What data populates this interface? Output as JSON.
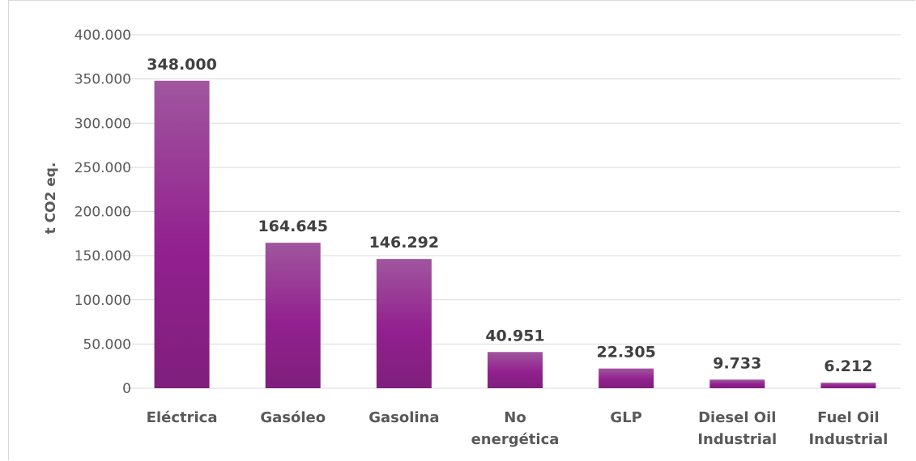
{
  "chart_data": {
    "type": "bar",
    "title": "",
    "xlabel": "",
    "ylabel": "t CO2 eq.",
    "ylim": [
      0,
      400000
    ],
    "yticks": [
      0,
      50000,
      100000,
      150000,
      200000,
      250000,
      300000,
      350000,
      400000
    ],
    "ytick_labels": [
      "0",
      "50.000",
      "100.000",
      "150.000",
      "200.000",
      "250.000",
      "300.000",
      "350.000",
      "400.000"
    ],
    "categories": [
      [
        "Eléctrica"
      ],
      [
        "Gasóleo"
      ],
      [
        "Gasolina"
      ],
      [
        "No",
        "energética"
      ],
      [
        "GLP"
      ],
      [
        "Diesel Oil",
        "Industrial"
      ],
      [
        "Fuel Oil",
        "Industrial"
      ]
    ],
    "values": [
      348000,
      164645,
      146292,
      40951,
      22305,
      9733,
      6212
    ],
    "value_labels": [
      "348.000",
      "164.645",
      "146.292",
      "40.951",
      "22.305",
      "9.733",
      "6.212"
    ],
    "grid": true,
    "legend": "none",
    "colors": {
      "bar_top": "#a0569e",
      "bar_mid": "#92208f",
      "bar_bottom": "#7f1f7c",
      "gridline": "#d9d9d9"
    }
  }
}
